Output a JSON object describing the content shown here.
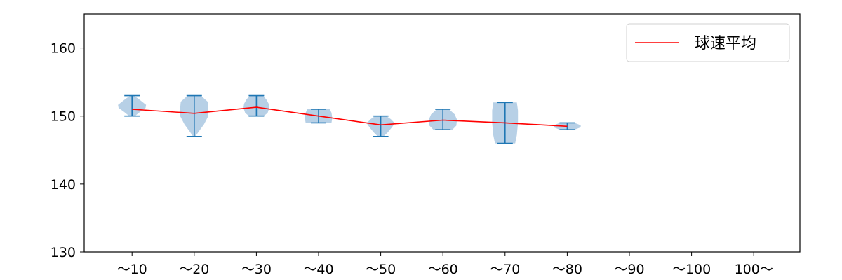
{
  "chart_data": {
    "type": "violin",
    "categories": [
      "～10",
      "～20",
      "～30",
      "～40",
      "～50",
      "～60",
      "～70",
      "～80",
      "～90",
      "～100",
      "100～"
    ],
    "ylim": [
      130,
      165
    ],
    "yticks": [
      130,
      140,
      150,
      160
    ],
    "title": "",
    "xlabel": "",
    "ylabel": "",
    "violins": [
      {
        "category": "～10",
        "min": 150,
        "max": 153,
        "mean": 151.0
      },
      {
        "category": "～20",
        "min": 147,
        "max": 153,
        "mean": 150.4
      },
      {
        "category": "～30",
        "min": 150,
        "max": 153,
        "mean": 151.3
      },
      {
        "category": "～40",
        "min": 149,
        "max": 151,
        "mean": 150.0
      },
      {
        "category": "～50",
        "min": 147,
        "max": 150,
        "mean": 148.7
      },
      {
        "category": "～60",
        "min": 148,
        "max": 151,
        "mean": 149.4
      },
      {
        "category": "～70",
        "min": 146,
        "max": 152,
        "mean": 149.0
      },
      {
        "category": "～80",
        "min": 148,
        "max": 149,
        "mean": 148.5
      }
    ],
    "series": [
      {
        "name": "球速平均",
        "color": "#ff0000",
        "values": [
          151.0,
          150.4,
          151.3,
          150.0,
          148.7,
          149.4,
          149.0,
          148.5
        ]
      }
    ],
    "legend": {
      "position": "top-right"
    },
    "colors": {
      "violin_fill": "#b7d0e6",
      "violin_line": "#1f77b4",
      "mean_line": "#ff0000"
    }
  }
}
